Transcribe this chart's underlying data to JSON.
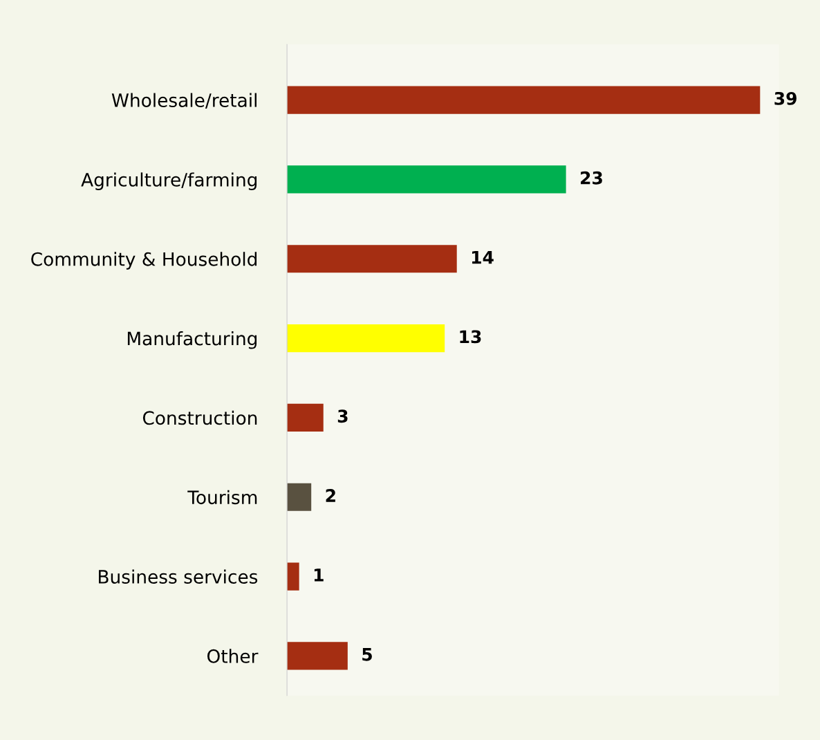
{
  "chart_data": {
    "type": "bar",
    "orientation": "horizontal",
    "categories": [
      "Wholesale/retail",
      "Agriculture/farming",
      "Community & Household",
      "Manufacturing",
      "Construction",
      "Tourism",
      "Business services",
      "Other"
    ],
    "values": [
      39,
      23,
      14,
      13,
      3,
      2,
      1,
      5
    ],
    "colors": [
      "#a52e12",
      "#00b050",
      "#a52e12",
      "#ffff00",
      "#a52e12",
      "#595140",
      "#a52e12",
      "#a52e12"
    ],
    "data_labels": true,
    "grid": false,
    "legend": false,
    "tick_labels": "y"
  }
}
